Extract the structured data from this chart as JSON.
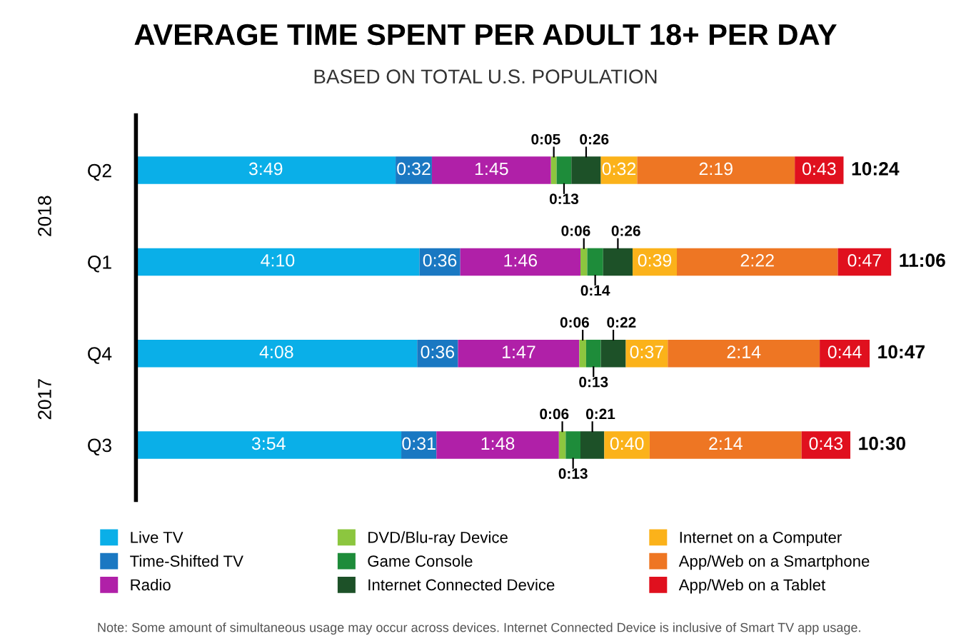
{
  "chart_data": {
    "type": "bar",
    "orientation": "horizontal",
    "stacked": true,
    "title": "AVERAGE TIME SPENT PER ADULT 18+ PER DAY",
    "subtitle": "BASED ON TOTAL U.S. POPULATION",
    "categories": [
      "Q2",
      "Q1",
      "Q4",
      "Q3"
    ],
    "series": [
      {
        "name": "Live TV",
        "color": "#0aafe8",
        "values": [
          229,
          250,
          248,
          234
        ],
        "value_labels": [
          "3:49",
          "4:10",
          "4:08",
          "3:54"
        ]
      },
      {
        "name": "Time-Shifted TV",
        "color": "#1a78c2",
        "values": [
          32,
          36,
          36,
          31
        ],
        "value_labels": [
          "0:32",
          "0:36",
          "0:36",
          "0:31"
        ]
      },
      {
        "name": "Radio",
        "color": "#b020a8",
        "values": [
          105,
          106,
          107,
          108
        ],
        "value_labels": [
          "1:45",
          "1:46",
          "1:47",
          "1:48"
        ]
      },
      {
        "name": "DVD/Blu-ray Device",
        "color": "#8cc63f",
        "values": [
          5,
          6,
          6,
          6
        ],
        "value_labels": [
          "0:05",
          "0:06",
          "0:06",
          "0:06"
        ]
      },
      {
        "name": "Game Console",
        "color": "#1e8c3a",
        "values": [
          13,
          14,
          13,
          13
        ],
        "value_labels": [
          "0:13",
          "0:14",
          "0:13",
          "0:13"
        ]
      },
      {
        "name": "Internet Connected Device",
        "color": "#1d5128",
        "values": [
          26,
          26,
          22,
          21
        ],
        "value_labels": [
          "0:26",
          "0:26",
          "0:22",
          "0:21"
        ]
      },
      {
        "name": "Internet on a Computer",
        "color": "#fbb21a",
        "values": [
          32,
          39,
          37,
          40
        ],
        "value_labels": [
          "0:32",
          "0:39",
          "0:37",
          "0:40"
        ]
      },
      {
        "name": "App/Web on a Smartphone",
        "color": "#ee7623",
        "values": [
          139,
          142,
          134,
          134
        ],
        "value_labels": [
          "2:19",
          "2:22",
          "2:14",
          "2:14"
        ]
      },
      {
        "name": "App/Web on a Tablet",
        "color": "#e0101e",
        "values": [
          43,
          47,
          44,
          43
        ],
        "value_labels": [
          "0:43",
          "0:47",
          "0:44",
          "0:43"
        ]
      }
    ],
    "totals": [
      "10:24",
      "11:06",
      "10:47",
      "10:30"
    ],
    "tick_labels": "y",
    "legend": "bottom",
    "annotations": [
      "2018",
      "2017",
      "Note: Some amount of simultaneous usage may occur across devices. Internet Connected Device is inclusive of Smart TV app usage."
    ]
  }
}
